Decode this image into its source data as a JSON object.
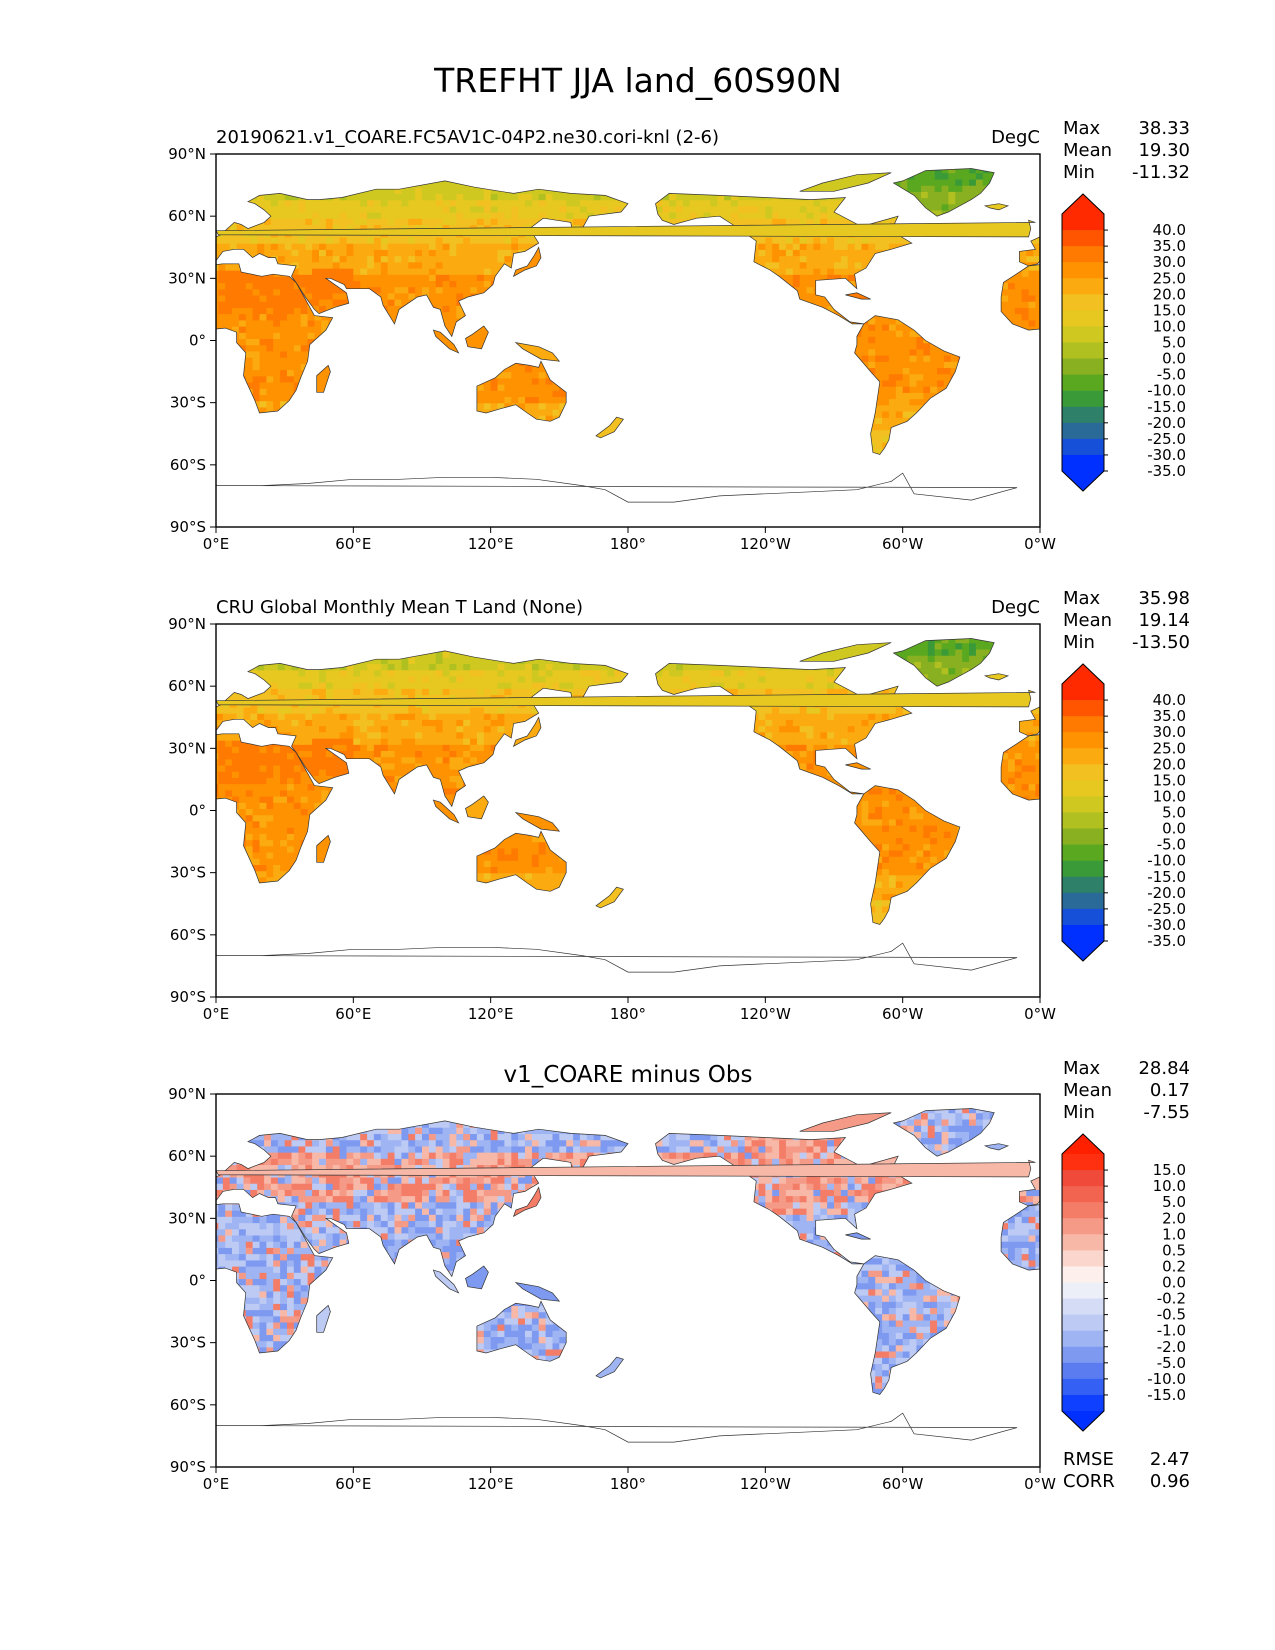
{
  "figure_title": "TREFHT JJA land_60S90N",
  "lon_ticks": [
    "0°E",
    "60°E",
    "120°E",
    "180°",
    "120°W",
    "60°W",
    "0°W"
  ],
  "lat_ticks": [
    "90°N",
    "60°N",
    "30°N",
    "0°",
    "30°S",
    "60°S",
    "90°S"
  ],
  "panels": [
    {
      "title_left": "20190621.v1_COARE.FC5AV1C-04P2.ne30.cori-knl (2-6)",
      "title_center": "",
      "units": "DegC",
      "stats": [
        {
          "label": "Max",
          "value": "38.33"
        },
        {
          "label": "Mean",
          "value": "19.30"
        },
        {
          "label": "Min",
          "value": "-11.32"
        }
      ],
      "colorbar": {
        "ticks": [
          "40.0",
          "35.0",
          "30.0",
          "25.0",
          "20.0",
          "15.0",
          "10.0",
          "5.0",
          "0.0",
          "-5.0",
          "-10.0",
          "-15.0",
          "-20.0",
          "-25.0",
          "-30.0",
          "-35.0"
        ],
        "colors": [
          "#ff2a00",
          "#ff5500",
          "#ff7a00",
          "#ff9200",
          "#fbaa10",
          "#f2c020",
          "#e6c820",
          "#cfc820",
          "#b0c020",
          "#88b020",
          "#5aa820",
          "#3a9a38",
          "#2e8068",
          "#2a6a98",
          "#1650d8",
          "#0030ff"
        ],
        "top_color": "#ff2a00",
        "bottom_color": "#0030ff"
      },
      "footer": []
    },
    {
      "title_left": "CRU Global Monthly Mean T Land (None)",
      "title_center": "",
      "units": "DegC",
      "stats": [
        {
          "label": "Max",
          "value": "35.98"
        },
        {
          "label": "Mean",
          "value": "19.14"
        },
        {
          "label": "Min",
          "value": "-13.50"
        }
      ],
      "colorbar": {
        "ticks": [
          "40.0",
          "35.0",
          "30.0",
          "25.0",
          "20.0",
          "15.0",
          "10.0",
          "5.0",
          "0.0",
          "-5.0",
          "-10.0",
          "-15.0",
          "-20.0",
          "-25.0",
          "-30.0",
          "-35.0"
        ],
        "colors": [
          "#ff2a00",
          "#ff5500",
          "#ff7a00",
          "#ff9200",
          "#fbaa10",
          "#f2c020",
          "#e6c820",
          "#cfc820",
          "#b0c020",
          "#88b020",
          "#5aa820",
          "#3a9a38",
          "#2e8068",
          "#2a6a98",
          "#1650d8",
          "#0030ff"
        ],
        "top_color": "#ff2a00",
        "bottom_color": "#0030ff"
      },
      "footer": []
    },
    {
      "title_left": "",
      "title_center": "v1_COARE minus Obs",
      "units": "",
      "stats": [
        {
          "label": "Max",
          "value": "28.84"
        },
        {
          "label": "Mean",
          "value": "0.17"
        },
        {
          "label": "Min",
          "value": "-7.55"
        }
      ],
      "colorbar": {
        "ticks": [
          "15.0",
          "10.0",
          "5.0",
          "2.0",
          "1.0",
          "0.5",
          "0.2",
          "0.0",
          "-0.2",
          "-0.5",
          "-1.0",
          "-2.0",
          "-5.0",
          "-10.0",
          "-15.0"
        ],
        "colors": [
          "#ff3010",
          "#f04a3a",
          "#f26450",
          "#f47d68",
          "#f69a88",
          "#f8b8a8",
          "#fad6cc",
          "#fdf0ec",
          "#eceff8",
          "#d4dcf6",
          "#bccaf4",
          "#9fb4f2",
          "#7e9af0",
          "#5a7cf0",
          "#3460f4",
          "#1040ff"
        ],
        "top_color": "#ff2000",
        "bottom_color": "#0030ff"
      },
      "footer": [
        {
          "label": "RMSE",
          "value": "2.47"
        },
        {
          "label": "CORR",
          "value": "0.96"
        }
      ]
    }
  ]
}
